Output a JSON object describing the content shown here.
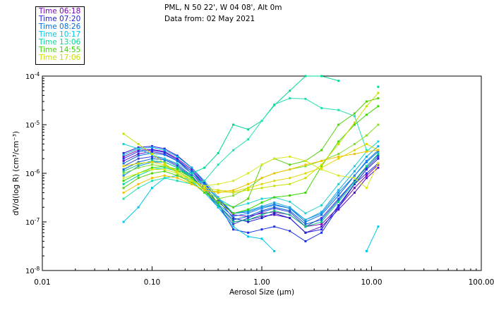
{
  "header": {
    "location": "PML, N 50 22', W 04 08', Alt 0m",
    "date": "Data from: 02 May 2021"
  },
  "chart_data": {
    "type": "line",
    "title": "PML, N 50 22', W 04 08', Alt 0m",
    "subtitle": "Data from: 02 May 2021",
    "xlabel": "Aerosol Size (μm)",
    "ylabel": "dV/d(log R) (cm³/cm⁻³)",
    "xscale": "log",
    "yscale": "log",
    "xlim": [
      0.01,
      100
    ],
    "ylim": [
      1e-08,
      0.0001
    ],
    "x_ticks": [
      {
        "value": 0.01,
        "label": "0.01"
      },
      {
        "value": 0.1,
        "label": "0.10"
      },
      {
        "value": 1,
        "label": "1.00"
      },
      {
        "value": 10,
        "label": "10.00"
      },
      {
        "value": 100,
        "label": "100.00"
      }
    ],
    "y_ticks": [
      {
        "value": 1e-08,
        "base": "10",
        "exp": "-8"
      },
      {
        "value": 1e-07,
        "base": "10",
        "exp": "-7"
      },
      {
        "value": 1e-06,
        "base": "10",
        "exp": "-6"
      },
      {
        "value": 1e-05,
        "base": "10",
        "exp": "-5"
      },
      {
        "value": 0.0001,
        "base": "10",
        "exp": "-4"
      }
    ],
    "legend": [
      {
        "label": "Time 06:18",
        "color": "#7a00b8"
      },
      {
        "label": "Time 07:20",
        "color": "#2020d8"
      },
      {
        "label": "Time 08:26",
        "color": "#0070e0"
      },
      {
        "label": "Time 10:17",
        "color": "#00c8e8"
      },
      {
        "label": "Time 13:06",
        "color": "#00d89a"
      },
      {
        "label": "Time 14:55",
        "color": "#3ad800"
      },
      {
        "label": "Time 17:06",
        "color": "#c8e000"
      }
    ],
    "x": [
      0.055,
      0.075,
      0.1,
      0.13,
      0.17,
      0.23,
      0.3,
      0.4,
      0.55,
      0.75,
      1.0,
      1.3,
      1.8,
      2.5,
      3.5,
      5.0,
      7.0,
      9.0,
      11.5
    ],
    "series": [
      {
        "name": "Time 06:18",
        "color": "#7a00b8",
        "values": [
          2.2e-06,
          3e-06,
          3.1e-06,
          2.8e-06,
          2e-06,
          1.2e-06,
          6e-07,
          3e-07,
          1.4e-07,
          1.3e-07,
          1.5e-07,
          1.6e-07,
          1.4e-07,
          8e-08,
          9e-08,
          2e-07,
          5e-07,
          9e-07,
          1.5e-06
        ]
      },
      {
        "name": "Time 06:18",
        "color": "#5a10c8",
        "values": [
          1.8e-06,
          2.5e-06,
          2.8e-06,
          2.5e-06,
          1.8e-06,
          1e-06,
          5e-07,
          2.2e-07,
          1e-07,
          1.1e-07,
          1.3e-07,
          1.4e-07,
          1.2e-07,
          6e-08,
          8e-08,
          1.8e-07,
          4e-07,
          8e-07,
          1.3e-06
        ]
      },
      {
        "name": "Time 07:20",
        "color": "#2020d8",
        "values": [
          2.6e-06,
          3.4e-06,
          3.6e-06,
          3.2e-06,
          2.3e-06,
          1.3e-06,
          6.5e-07,
          2.8e-07,
          1.2e-07,
          1e-07,
          1.2e-07,
          1.5e-07,
          1.2e-07,
          6e-08,
          7e-08,
          2.2e-07,
          6e-07,
          1.2e-06,
          2e-06
        ]
      },
      {
        "name": "Time 07:20",
        "color": "#1a30e8",
        "values": [
          2e-06,
          2.8e-06,
          3e-06,
          2.7e-06,
          1.9e-06,
          1.1e-06,
          5.5e-07,
          2.4e-07,
          7e-08,
          6e-08,
          7e-08,
          8e-08,
          6.5e-08,
          4e-08,
          6e-08,
          2e-07,
          6e-07,
          1e-06,
          1.6e-06
        ]
      },
      {
        "name": "Time 07:20",
        "color": "#3a3ae0",
        "values": [
          1.4e-06,
          2e-06,
          2.2e-06,
          2e-06,
          1.5e-06,
          9e-07,
          4.5e-07,
          2e-07,
          9e-08,
          1.2e-07,
          1.6e-07,
          1.9e-07,
          1.6e-07,
          8e-08,
          1.2e-07,
          3e-07,
          7e-07,
          1.3e-06,
          2.2e-06
        ]
      },
      {
        "name": "Time 08:26",
        "color": "#0070e0",
        "values": [
          1.6e-06,
          2.3e-06,
          2.6e-06,
          2.4e-06,
          1.8e-06,
          1.1e-06,
          6e-07,
          3e-07,
          1.5e-07,
          1.6e-07,
          2e-07,
          2.3e-07,
          1.9e-07,
          1e-07,
          1.4e-07,
          3.5e-07,
          9e-07,
          1.7e-06,
          2.8e-06
        ]
      },
      {
        "name": "Time 08:26",
        "color": "#0a60d0",
        "values": [
          1.2e-06,
          1.7e-06,
          2e-06,
          1.9e-06,
          1.4e-06,
          8.5e-07,
          4.5e-07,
          2.2e-07,
          1.1e-07,
          1.3e-07,
          1.7e-07,
          2e-07,
          1.7e-07,
          9e-08,
          1.1e-07,
          2.8e-07,
          7e-07,
          1.4e-06,
          2.4e-06
        ]
      },
      {
        "name": "Time 08:26",
        "color": "#2088f0",
        "values": [
          9e-07,
          1.4e-06,
          1.7e-06,
          1.7e-06,
          1.3e-06,
          8e-07,
          4.5e-07,
          2.3e-07,
          1.3e-07,
          1.5e-07,
          1.9e-07,
          2.2e-07,
          1.9e-07,
          1.1e-07,
          1.5e-07,
          4e-07,
          9e-07,
          1.8e-06,
          3e-06
        ]
      },
      {
        "name": "Time 10:17",
        "color": "#00c8e8",
        "values": [
          1e-07,
          2e-07,
          5e-07,
          8e-07,
          9e-07,
          7e-07,
          4e-07,
          2e-07,
          8e-08,
          5e-08,
          4.5e-08,
          2.5e-08,
          null,
          null,
          null,
          null,
          null,
          2.5e-08,
          8e-08
        ]
      },
      {
        "name": "Time 10:17",
        "color": "#10a8e0",
        "values": [
          2.4e-06,
          3.2e-06,
          3.4e-06,
          3e-06,
          2.2e-06,
          1.3e-06,
          7e-07,
          3.2e-07,
          1.5e-07,
          1.7e-07,
          2.1e-07,
          2.5e-07,
          2e-07,
          1.1e-07,
          1.6e-07,
          4.5e-07,
          1.1e-06,
          2.2e-06,
          3.6e-06
        ]
      },
      {
        "name": "Time 10:17",
        "color": "#20d0d0",
        "values": [
          4e-06,
          3.2e-06,
          2.4e-06,
          2e-06,
          1.6e-06,
          1e-06,
          5.5e-07,
          3e-07,
          2e-07,
          2.4e-07,
          3e-07,
          3.2e-07,
          2.6e-07,
          1.5e-07,
          2.2e-07,
          6e-07,
          1.4e-06,
          2.8e-06,
          4.5e-06
        ]
      },
      {
        "name": "Time 13:06",
        "color": "#00d89a",
        "values": [
          6e-07,
          9e-07,
          1.2e-06,
          1.3e-06,
          1.1e-06,
          1e-06,
          1.3e-06,
          2.6e-06,
          1e-05,
          8e-06,
          1.2e-05,
          2.5e-05,
          5e-05,
          0.0001,
          0.0001,
          8e-05,
          null,
          null,
          6e-05
        ]
      },
      {
        "name": "Time 13:06",
        "color": "#10c880",
        "values": [
          1.1e-06,
          1.5e-06,
          1.8e-06,
          1.7e-06,
          1.3e-06,
          8.5e-07,
          4.5e-07,
          2.2e-07,
          1e-07,
          1.1e-07,
          1.4e-07,
          1.7e-07,
          1.4e-07,
          8e-08,
          1e-07,
          2.6e-07,
          6.5e-07,
          1.4e-06,
          2.5e-06
        ]
      },
      {
        "name": "Time 13:06",
        "color": "#20e0b0",
        "values": [
          3e-07,
          5e-07,
          7e-07,
          8e-07,
          7e-07,
          6e-07,
          7e-07,
          1.5e-06,
          3e-06,
          5e-06,
          1.2e-05,
          2.6e-05,
          3.5e-05,
          3.4e-05,
          2.2e-05,
          2e-05,
          1.5e-05,
          3e-06,
          null
        ]
      },
      {
        "name": "Time 14:55",
        "color": "#3ad800",
        "values": [
          7e-07,
          1e-06,
          1.3e-06,
          1.4e-06,
          1.2e-06,
          8e-07,
          4.5e-07,
          2.5e-07,
          1.5e-07,
          1.8e-07,
          2.5e-07,
          3.2e-07,
          3.5e-07,
          4e-07,
          1.4e-06,
          4.5e-06,
          1e-05,
          1.6e-05,
          2.4e-05
        ]
      },
      {
        "name": "Time 14:55",
        "color": "#58d010",
        "values": [
          5e-07,
          8e-07,
          1e-06,
          1.1e-06,
          9e-07,
          6.5e-07,
          4e-07,
          2.6e-07,
          2e-07,
          3e-07,
          1.5e-06,
          2e-06,
          1.5e-06,
          1.8e-06,
          3e-06,
          1e-05,
          1.7e-05,
          3e-05,
          3.5e-05
        ]
      },
      {
        "name": "Time 14:55",
        "color": "#80e030",
        "values": [
          1e-06,
          1.3e-06,
          1.5e-06,
          1.4e-06,
          1.1e-06,
          7.5e-07,
          4.5e-07,
          3e-07,
          3.5e-07,
          5e-07,
          8e-07,
          1e-06,
          1.2e-06,
          1.4e-06,
          1.8e-06,
          2.5e-06,
          4e-06,
          6e-06,
          1e-05
        ]
      },
      {
        "name": "Time 17:06",
        "color": "#c8e000",
        "values": [
          6.5e-06,
          4e-06,
          2.5e-06,
          1.6e-06,
          1e-06,
          6e-07,
          4.5e-07,
          4.2e-07,
          4e-07,
          4.5e-07,
          5e-07,
          5.5e-07,
          6e-07,
          8e-07,
          1.5e-06,
          4e-06,
          1.1e-05,
          2.4e-05,
          4.5e-05
        ]
      },
      {
        "name": "Time 17:06",
        "color": "#e0d800",
        "values": [
          1.4e-06,
          1.6e-06,
          1.7e-06,
          1.5e-06,
          1.1e-06,
          7e-07,
          5e-07,
          4.5e-07,
          4.2e-07,
          5e-07,
          6e-07,
          7e-07,
          8e-07,
          1e-06,
          1.3e-06,
          2e-06,
          3e-06,
          4e-06,
          3e-06
        ]
      },
      {
        "name": "Time 17:06",
        "color": "#f0c400",
        "values": [
          4e-07,
          6e-07,
          8e-07,
          9e-07,
          8e-07,
          6e-07,
          4.5e-07,
          4e-07,
          4.5e-07,
          6e-07,
          8e-07,
          1e-06,
          1.2e-06,
          1.5e-06,
          1.8e-06,
          2.2e-06,
          2.5e-06,
          2.8e-06,
          3e-06
        ]
      },
      {
        "name": "Time 17:06",
        "color": "#d8e820",
        "values": [
          8e-07,
          1e-06,
          1.2e-06,
          1.2e-06,
          1e-06,
          7e-07,
          5.5e-07,
          6e-07,
          7e-07,
          1e-06,
          1.5e-06,
          2e-06,
          2.2e-06,
          1.8e-06,
          1.2e-06,
          9e-07,
          8e-07,
          5e-07,
          1.6e-06
        ]
      }
    ]
  }
}
